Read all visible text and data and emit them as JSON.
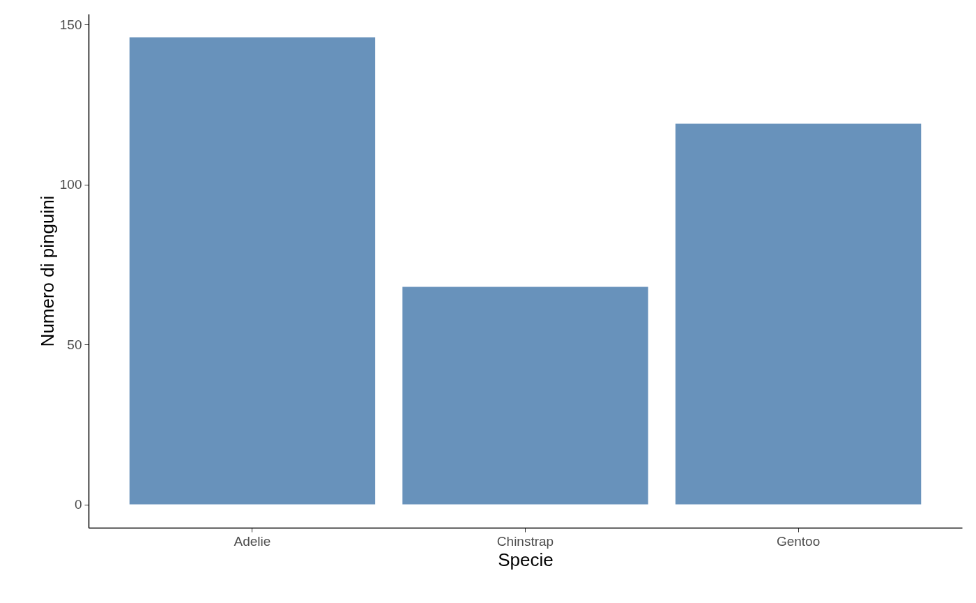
{
  "chart_data": {
    "type": "bar",
    "xlabel": "Specie",
    "ylabel": "Numero di pinguini",
    "categories": [
      "Adelie",
      "Chinstrap",
      "Gentoo"
    ],
    "values": [
      146,
      68,
      119
    ],
    "color": "#6892bb",
    "ylim": [
      -7.3,
      153.3
    ],
    "yticks": [
      0,
      50,
      100,
      150
    ],
    "grid": false
  }
}
